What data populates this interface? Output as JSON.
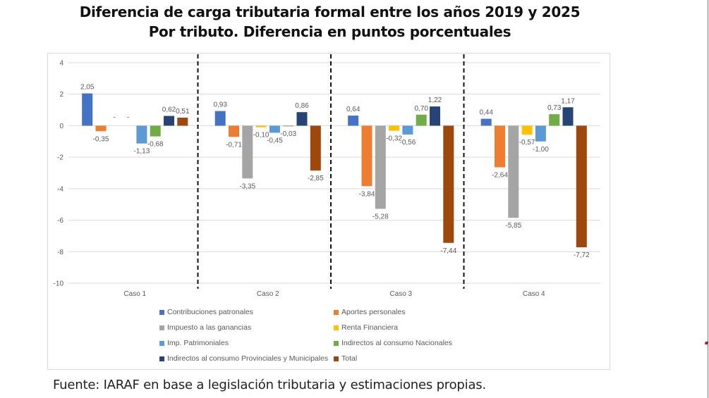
{
  "title_line1": "Diferencia de carga tributaria formal entre los años 2019 y 2025",
  "title_line2": "Por tributo. Diferencia en puntos porcentuales",
  "source": "Fuente: IARAF en base a legislación tributaria y estimaciones propias.",
  "chart_data": {
    "type": "bar",
    "title": "Diferencia de carga tributaria formal entre los años 2019 y 2025",
    "subtitle": "Por tributo. Diferencia en puntos porcentuales",
    "xlabel": "",
    "ylabel": "",
    "ylim": [
      -10,
      4
    ],
    "yticks": [
      4,
      2,
      0,
      -2,
      -4,
      -6,
      -8,
      -10
    ],
    "grid": true,
    "legend_position": "bottom",
    "group_separators": "dashed",
    "categories": [
      "Caso 1",
      "Caso 2",
      "Caso 3",
      "Caso 4"
    ],
    "series": [
      {
        "name": "Contribuciones patronales",
        "color": "#4472c4",
        "values": [
          2.05,
          0.93,
          0.64,
          0.44
        ],
        "labels": [
          "2,05",
          "0,93",
          "0,64",
          "0,44"
        ]
      },
      {
        "name": "Aportes personales",
        "color": "#ed7d31",
        "values": [
          -0.35,
          -0.71,
          -3.84,
          -2.64
        ],
        "labels": [
          "-0,35",
          "-0,71",
          "-3,84",
          "-2,64"
        ]
      },
      {
        "name": "Impuesto a las ganancias",
        "color": "#a5a5a5",
        "values": [
          0,
          -3.35,
          -5.28,
          -5.85
        ],
        "labels": [
          "-",
          "-3,35",
          "-5,28",
          "-5,85"
        ]
      },
      {
        "name": "Renta Financiera",
        "color": "#ffc000",
        "values": [
          0,
          -0.1,
          -0.32,
          -0.57
        ],
        "labels": [
          "-",
          "-0,10",
          "-0,32",
          "-0,57"
        ]
      },
      {
        "name": "Imp. Patrimoniales",
        "color": "#5b9bd5",
        "values": [
          -1.13,
          -0.45,
          -0.56,
          -1.0
        ],
        "labels": [
          "-1,13",
          "-0,45",
          "-0,56",
          "-1,00"
        ]
      },
      {
        "name": "Indirectos al consumo Nacionales",
        "color": "#70ad47",
        "values": [
          -0.68,
          -0.03,
          0.7,
          0.73
        ],
        "labels": [
          "-0,68",
          "-0,03",
          "0,70",
          "0,73"
        ]
      },
      {
        "name": "Indirectos al consumo Provinciales y Municipales",
        "color": "#264478",
        "values": [
          0.62,
          0.86,
          1.22,
          1.17
        ],
        "labels": [
          "0,62",
          "0,86",
          "1,22",
          "1,17"
        ]
      },
      {
        "name": "Total",
        "color": "#9e480e",
        "values": [
          0.51,
          -2.85,
          -7.44,
          -7.72
        ],
        "labels": [
          "0,51",
          "-2,85",
          "-7,44",
          "-7,72"
        ]
      }
    ]
  }
}
